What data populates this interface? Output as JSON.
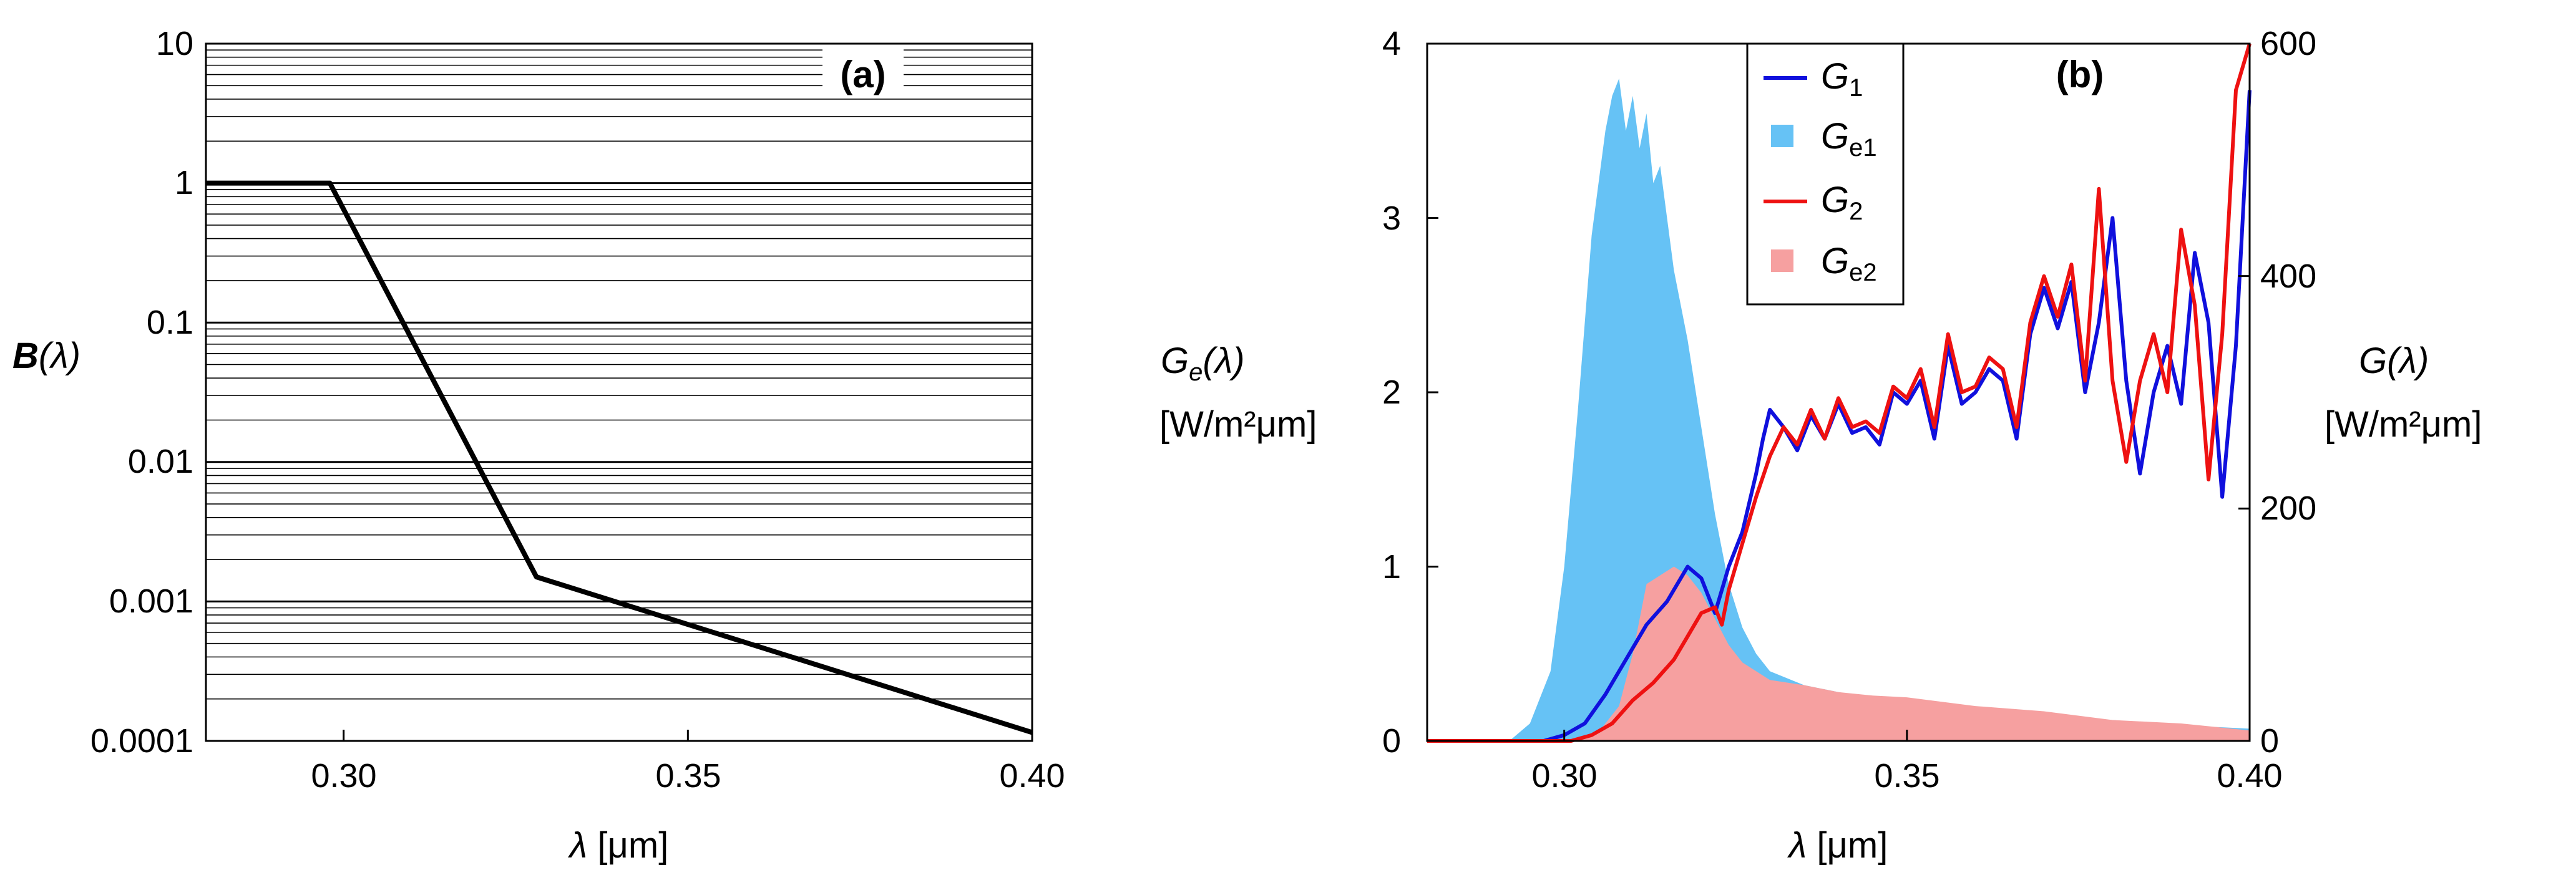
{
  "chart_data": [
    {
      "type": "line",
      "panel_label": "(a)",
      "xlabel": "λ [μm]",
      "xlabel_symbol": "λ",
      "xlabel_unit": "[μm]",
      "ylabel_symbol": "B",
      "ylabel_arg": "(λ)",
      "ylabel": "B(λ)",
      "x_scale": "linear",
      "y_scale": "log",
      "xlim": [
        0.28,
        0.4
      ],
      "ylim": [
        0.0001,
        10
      ],
      "x_ticks": [
        0.3,
        0.35,
        0.4
      ],
      "x_tick_labels": [
        "0.30",
        "0.35",
        "0.40"
      ],
      "y_ticks": [
        0.0001,
        0.001,
        0.01,
        0.1,
        1,
        10
      ],
      "y_tick_labels": [
        "0.0001",
        "0.001",
        "0.01",
        "0.1",
        "1",
        "10"
      ],
      "grid": "horizontal log grid",
      "series": [
        {
          "name": "B(λ)",
          "color": "#000000",
          "x": [
            0.28,
            0.298,
            0.328,
            0.4
          ],
          "y": [
            1,
            1,
            0.0015,
            0.000115
          ]
        }
      ]
    },
    {
      "type": "line+area",
      "panel_label": "(b)",
      "xlabel": "λ [μm]",
      "xlabel_symbol": "λ",
      "xlabel_unit": "[μm]",
      "ylabel_left_symbol": "G",
      "ylabel_left_sub": "e",
      "ylabel_left_arg": "(λ)",
      "ylabel_left_unit": "[W/m²μm]",
      "ylabel_right_symbol": "G",
      "ylabel_right_arg": "(λ)",
      "ylabel_right_unit": "[W/m²μm]",
      "xlim": [
        0.28,
        0.4
      ],
      "ylim_left": [
        0,
        4
      ],
      "ylim_right": [
        0,
        600
      ],
      "x_ticks": [
        0.3,
        0.35,
        0.4
      ],
      "x_tick_labels": [
        "0.30",
        "0.35",
        "0.40"
      ],
      "y_left_ticks": [
        0,
        1,
        2,
        3,
        4
      ],
      "y_left_tick_labels": [
        "0",
        "1",
        "2",
        "3",
        "4"
      ],
      "y_right_ticks": [
        0,
        200,
        400,
        600
      ],
      "y_right_tick_labels": [
        "0",
        "200",
        "400",
        "600"
      ],
      "legend_position": "top-center",
      "series": [
        {
          "name": "G1",
          "legend_main": "G",
          "legend_sub": "1",
          "kind": "line",
          "axis": "right",
          "color": "#1010dd",
          "x": [
            0.28,
            0.297,
            0.3,
            0.303,
            0.306,
            0.309,
            0.312,
            0.315,
            0.318,
            0.32,
            0.322,
            0.324,
            0.326,
            0.328,
            0.329,
            0.33,
            0.332,
            0.334,
            0.336,
            0.338,
            0.34,
            0.342,
            0.344,
            0.346,
            0.348,
            0.35,
            0.352,
            0.354,
            0.356,
            0.358,
            0.36,
            0.362,
            0.364,
            0.366,
            0.368,
            0.37,
            0.372,
            0.374,
            0.376,
            0.378,
            0.38,
            0.382,
            0.384,
            0.386,
            0.388,
            0.39,
            0.392,
            0.394,
            0.396,
            0.398,
            0.4
          ],
          "y": [
            0,
            0,
            5,
            15,
            40,
            70,
            100,
            120,
            150,
            140,
            110,
            150,
            180,
            230,
            260,
            285,
            270,
            250,
            280,
            260,
            290,
            265,
            270,
            255,
            300,
            290,
            310,
            260,
            340,
            290,
            300,
            320,
            310,
            260,
            350,
            390,
            355,
            395,
            300,
            360,
            450,
            310,
            230,
            300,
            340,
            290,
            420,
            360,
            210,
            340,
            560
          ]
        },
        {
          "name": "Ge1",
          "legend_main": "G",
          "legend_sub": "e1",
          "kind": "area",
          "axis": "left",
          "color": "#66c2f5",
          "x": [
            0.28,
            0.292,
            0.295,
            0.298,
            0.3,
            0.302,
            0.304,
            0.306,
            0.307,
            0.308,
            0.309,
            0.31,
            0.311,
            0.312,
            0.313,
            0.314,
            0.315,
            0.316,
            0.318,
            0.32,
            0.322,
            0.324,
            0.326,
            0.328,
            0.33,
            0.335,
            0.34,
            0.35,
            0.36,
            0.37,
            0.38,
            0.39,
            0.4
          ],
          "y": [
            0,
            0,
            0.1,
            0.4,
            1.0,
            1.9,
            2.9,
            3.5,
            3.7,
            3.8,
            3.5,
            3.7,
            3.4,
            3.6,
            3.2,
            3.3,
            3.0,
            2.7,
            2.3,
            1.8,
            1.3,
            0.9,
            0.65,
            0.5,
            0.4,
            0.32,
            0.28,
            0.22,
            0.17,
            0.14,
            0.12,
            0.09,
            0.07
          ]
        },
        {
          "name": "G2",
          "legend_main": "G",
          "legend_sub": "2",
          "kind": "line",
          "axis": "right",
          "color": "#ee1111",
          "x": [
            0.28,
            0.301,
            0.304,
            0.307,
            0.31,
            0.313,
            0.316,
            0.318,
            0.32,
            0.322,
            0.323,
            0.324,
            0.326,
            0.328,
            0.33,
            0.332,
            0.334,
            0.336,
            0.338,
            0.34,
            0.342,
            0.344,
            0.346,
            0.348,
            0.35,
            0.352,
            0.354,
            0.356,
            0.358,
            0.36,
            0.362,
            0.364,
            0.366,
            0.368,
            0.37,
            0.372,
            0.374,
            0.376,
            0.378,
            0.38,
            0.382,
            0.384,
            0.386,
            0.388,
            0.39,
            0.392,
            0.394,
            0.396,
            0.398,
            0.4
          ],
          "y": [
            0,
            0,
            5,
            15,
            35,
            50,
            70,
            90,
            110,
            115,
            100,
            130,
            170,
            210,
            245,
            270,
            255,
            285,
            260,
            295,
            270,
            275,
            265,
            305,
            295,
            320,
            270,
            350,
            300,
            305,
            330,
            320,
            270,
            360,
            400,
            365,
            410,
            310,
            475,
            310,
            240,
            310,
            350,
            300,
            440,
            375,
            225,
            350,
            560,
            600
          ]
        },
        {
          "name": "Ge2",
          "legend_main": "G",
          "legend_sub": "e2",
          "kind": "area",
          "axis": "left",
          "color": "#f6a0a0",
          "x": [
            0.28,
            0.3,
            0.305,
            0.308,
            0.31,
            0.312,
            0.314,
            0.316,
            0.318,
            0.32,
            0.322,
            0.324,
            0.326,
            0.328,
            0.33,
            0.335,
            0.34,
            0.345,
            0.35,
            0.36,
            0.37,
            0.38,
            0.39,
            0.4
          ],
          "y": [
            0,
            0,
            0.05,
            0.2,
            0.5,
            0.9,
            0.95,
            1.0,
            0.95,
            0.85,
            0.7,
            0.55,
            0.45,
            0.4,
            0.35,
            0.32,
            0.28,
            0.26,
            0.25,
            0.2,
            0.17,
            0.12,
            0.1,
            0.06
          ]
        }
      ]
    }
  ]
}
